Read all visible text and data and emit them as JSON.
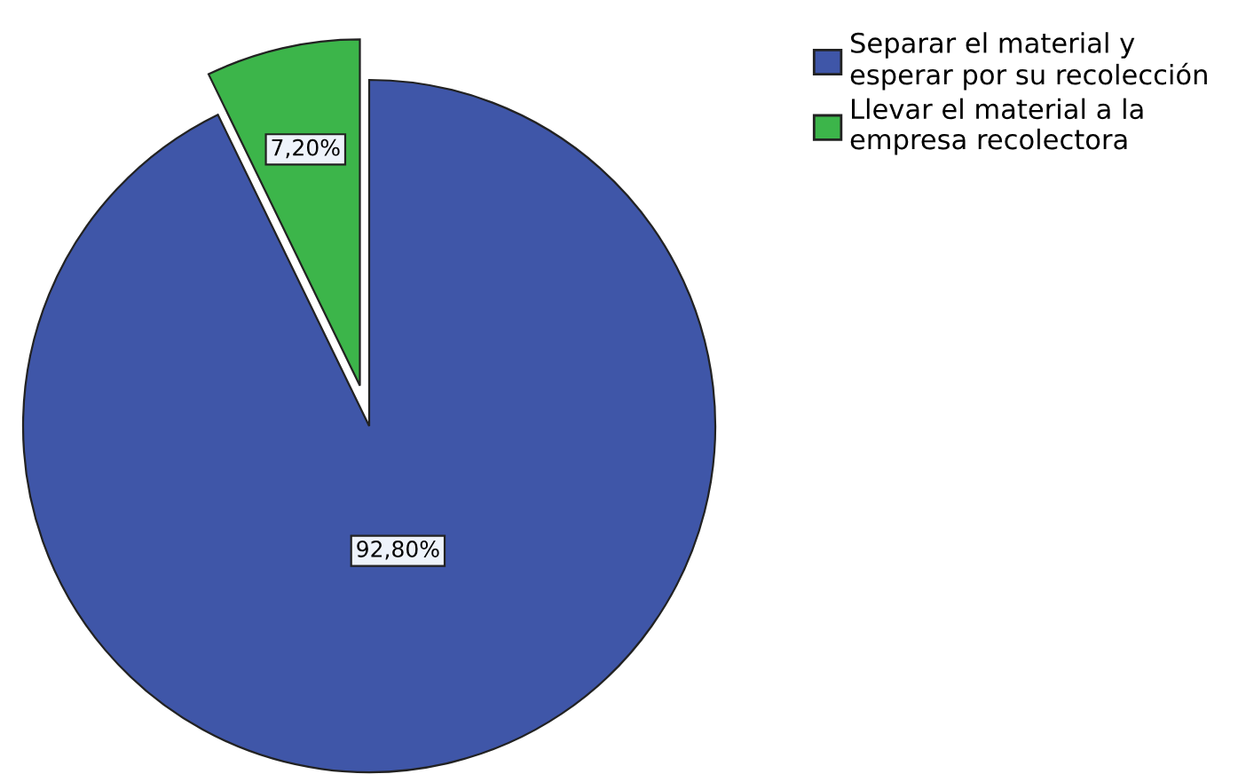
{
  "chart_data": {
    "type": "pie",
    "categories": [
      "Separar el material y\nesperar por su recolección",
      "Llevar el material a la\nempresa recolectora"
    ],
    "values": [
      92.8,
      7.2
    ],
    "colors": [
      "#3f56a8",
      "#3cb54a"
    ],
    "value_labels": [
      "92,80%",
      "7,20%"
    ],
    "legend": "top right"
  }
}
